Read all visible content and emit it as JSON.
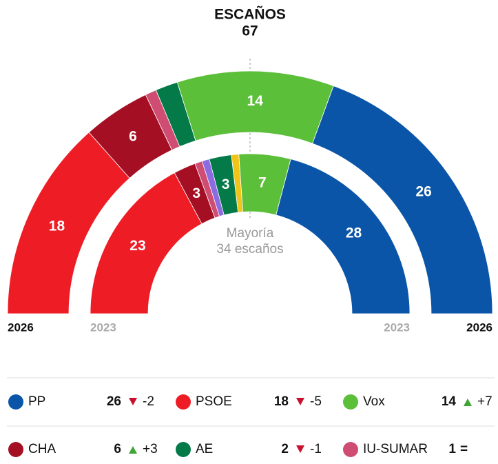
{
  "chart_data": {
    "type": "parliament",
    "title": "ESCAÑOS",
    "subtitle": "67",
    "annotation": [
      "Mayoría",
      "34 escaños"
    ],
    "categories": [
      "2026",
      "2023"
    ],
    "series": [
      {
        "name": "PSOE",
        "color": "#ee1c25",
        "values": [
          18,
          23
        ],
        "change": -5,
        "change_label": "-5"
      },
      {
        "name": "CHA",
        "color": "#a50f24",
        "values": [
          6,
          3
        ],
        "change": 3,
        "change_label": "+3"
      },
      {
        "name": "IU-SUMAR",
        "color": "#cf4c72",
        "values": [
          1,
          1
        ],
        "change": 0,
        "change_label": "="
      },
      {
        "name": null,
        "color": "#8a6be0",
        "values": [
          0,
          1
        ]
      },
      {
        "name": "AE",
        "color": "#037a48",
        "values": [
          2,
          3
        ],
        "change": -1,
        "change_label": "-1"
      },
      {
        "name": null,
        "color": "#f0c419",
        "values": [
          0,
          1
        ]
      },
      {
        "name": "Vox",
        "color": "#5cbf3a",
        "values": [
          14,
          7
        ],
        "change": 7,
        "change_label": "+7"
      },
      {
        "name": "PP",
        "color": "#0a55a8",
        "values": [
          26,
          28
        ],
        "change": -2,
        "change_label": "-2"
      }
    ]
  }
}
